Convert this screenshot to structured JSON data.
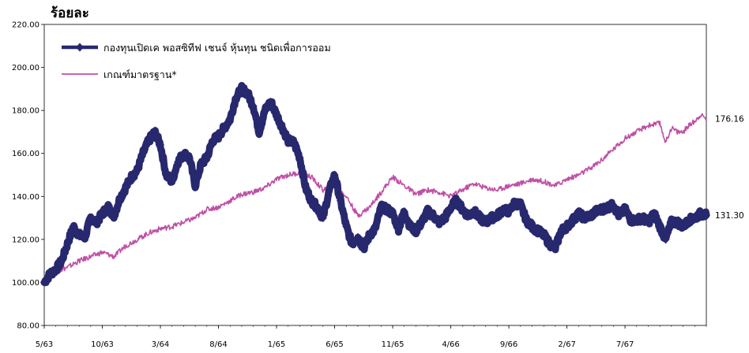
{
  "chart_data": {
    "type": "line",
    "ylabel": "ร้อยละ",
    "xlabel": "",
    "ylim": [
      80,
      220
    ],
    "yticks": [
      "80.00",
      "100.00",
      "120.00",
      "140.00",
      "160.00",
      "180.00",
      "200.00",
      "220.00"
    ],
    "xticks": [
      "5/63",
      "10/63",
      "3/64",
      "8/64",
      "1/65",
      "6/65",
      "11/65",
      "4/66",
      "9/66",
      "2/67",
      "7/67"
    ],
    "x_range_months": [
      0,
      57
    ],
    "legend_position": "top-left",
    "series": [
      {
        "name": "กองทุนเปิดเค พอสซิทีฟ เชนจ์ หุ้นทุน ชนิดเพื่อการออม",
        "color": "#27286e",
        "marker": "diamond",
        "end_label": "131.30",
        "points": [
          [
            0,
            100
          ],
          [
            0.5,
            104
          ],
          [
            1,
            106
          ],
          [
            1.5,
            110
          ],
          [
            2,
            118
          ],
          [
            2.5,
            126
          ],
          [
            3,
            122
          ],
          [
            3.5,
            121
          ],
          [
            4,
            130
          ],
          [
            4.5,
            128
          ],
          [
            5,
            132
          ],
          [
            5.5,
            135
          ],
          [
            6,
            131
          ],
          [
            6.5,
            139
          ],
          [
            7,
            144
          ],
          [
            7.5,
            149
          ],
          [
            8,
            152
          ],
          [
            8.5,
            160
          ],
          [
            9,
            166
          ],
          [
            9.5,
            170
          ],
          [
            10,
            164
          ],
          [
            10.5,
            150
          ],
          [
            11,
            147
          ],
          [
            11.5,
            156
          ],
          [
            12,
            160
          ],
          [
            12.5,
            158
          ],
          [
            13,
            145
          ],
          [
            13.5,
            155
          ],
          [
            14,
            158
          ],
          [
            14.5,
            166
          ],
          [
            15,
            168
          ],
          [
            15.5,
            172
          ],
          [
            16,
            176
          ],
          [
            16.5,
            186
          ],
          [
            17,
            190
          ],
          [
            17.5,
            188
          ],
          [
            18,
            182
          ],
          [
            18.5,
            170
          ],
          [
            19,
            180
          ],
          [
            19.5,
            184
          ],
          [
            20,
            178
          ],
          [
            20.5,
            172
          ],
          [
            21,
            166
          ],
          [
            21.5,
            165
          ],
          [
            22,
            158
          ],
          [
            22.5,
            144
          ],
          [
            23,
            138
          ],
          [
            23.5,
            135
          ],
          [
            24,
            130
          ],
          [
            24.5,
            142
          ],
          [
            25,
            150
          ],
          [
            25.5,
            138
          ],
          [
            26,
            126
          ],
          [
            26.5,
            118
          ],
          [
            27,
            121
          ],
          [
            27.5,
            116
          ],
          [
            28,
            122
          ],
          [
            28.5,
            125
          ],
          [
            29,
            135
          ],
          [
            29.5,
            134
          ],
          [
            30,
            132
          ],
          [
            30.5,
            125
          ],
          [
            31,
            133
          ],
          [
            31.5,
            126
          ],
          [
            32,
            124
          ],
          [
            32.5,
            128
          ],
          [
            33,
            133
          ],
          [
            33.5,
            131
          ],
          [
            34,
            128
          ],
          [
            34.5,
            130
          ],
          [
            35,
            135
          ],
          [
            35.5,
            138
          ],
          [
            36,
            134
          ],
          [
            36.5,
            131
          ],
          [
            37,
            133
          ],
          [
            37.5,
            130
          ],
          [
            38,
            128
          ],
          [
            38.5,
            130
          ],
          [
            39,
            131
          ],
          [
            39.5,
            134
          ],
          [
            40,
            133
          ],
          [
            40.5,
            137
          ],
          [
            41,
            136
          ],
          [
            41.5,
            129
          ],
          [
            42,
            126
          ],
          [
            42.5,
            124
          ],
          [
            43,
            122
          ],
          [
            43.5,
            118
          ],
          [
            44,
            116
          ],
          [
            44.5,
            124
          ],
          [
            45,
            126
          ],
          [
            45.5,
            129
          ],
          [
            46,
            132
          ],
          [
            46.5,
            130
          ],
          [
            47,
            131
          ],
          [
            47.5,
            133
          ],
          [
            48,
            134
          ],
          [
            48.5,
            135
          ],
          [
            49,
            136
          ],
          [
            49.5,
            131
          ],
          [
            50,
            134
          ],
          [
            50.5,
            129
          ],
          [
            51,
            129
          ],
          [
            51.5,
            130
          ],
          [
            52,
            128
          ],
          [
            52.5,
            132
          ],
          [
            53,
            126
          ],
          [
            53.5,
            120
          ],
          [
            54,
            128
          ],
          [
            54.5,
            128
          ],
          [
            55,
            126
          ],
          [
            55.5,
            129
          ],
          [
            56,
            130
          ],
          [
            56.5,
            132
          ],
          [
            57,
            131.3
          ]
        ]
      },
      {
        "name": "เกณฑ์มาตรฐาน*",
        "color": "#bf4fa5",
        "marker": "none",
        "end_label": "176.16",
        "points": [
          [
            0,
            100
          ],
          [
            1,
            105
          ],
          [
            2,
            107
          ],
          [
            3,
            110
          ],
          [
            4,
            112
          ],
          [
            5,
            114
          ],
          [
            6,
            112
          ],
          [
            7,
            117
          ],
          [
            8,
            120
          ],
          [
            9,
            123
          ],
          [
            10,
            125
          ],
          [
            11,
            126
          ],
          [
            12,
            128
          ],
          [
            13,
            130
          ],
          [
            14,
            134
          ],
          [
            15,
            135
          ],
          [
            16,
            138
          ],
          [
            17,
            141
          ],
          [
            18,
            142
          ],
          [
            19,
            144
          ],
          [
            20,
            148
          ],
          [
            21,
            150
          ],
          [
            22,
            151
          ],
          [
            23,
            149
          ],
          [
            24,
            143
          ],
          [
            25,
            146
          ],
          [
            26,
            140
          ],
          [
            27,
            131
          ],
          [
            28,
            135
          ],
          [
            29,
            142
          ],
          [
            30,
            149
          ],
          [
            31,
            145
          ],
          [
            32,
            141
          ],
          [
            33,
            143
          ],
          [
            34,
            142
          ],
          [
            35,
            140
          ],
          [
            36,
            143
          ],
          [
            37,
            146
          ],
          [
            38,
            144
          ],
          [
            39,
            143
          ],
          [
            40,
            145
          ],
          [
            41,
            146
          ],
          [
            42,
            148
          ],
          [
            43,
            147
          ],
          [
            44,
            145
          ],
          [
            45,
            148
          ],
          [
            46,
            150
          ],
          [
            47,
            153
          ],
          [
            48,
            157
          ],
          [
            49,
            162
          ],
          [
            50,
            167
          ],
          [
            51,
            170
          ],
          [
            52,
            173
          ],
          [
            53,
            174
          ],
          [
            53.5,
            165
          ],
          [
            54,
            172
          ],
          [
            54.5,
            170
          ],
          [
            55,
            170
          ],
          [
            55.5,
            173
          ],
          [
            56,
            175
          ],
          [
            56.5,
            178
          ],
          [
            57,
            176.16
          ]
        ]
      }
    ]
  }
}
